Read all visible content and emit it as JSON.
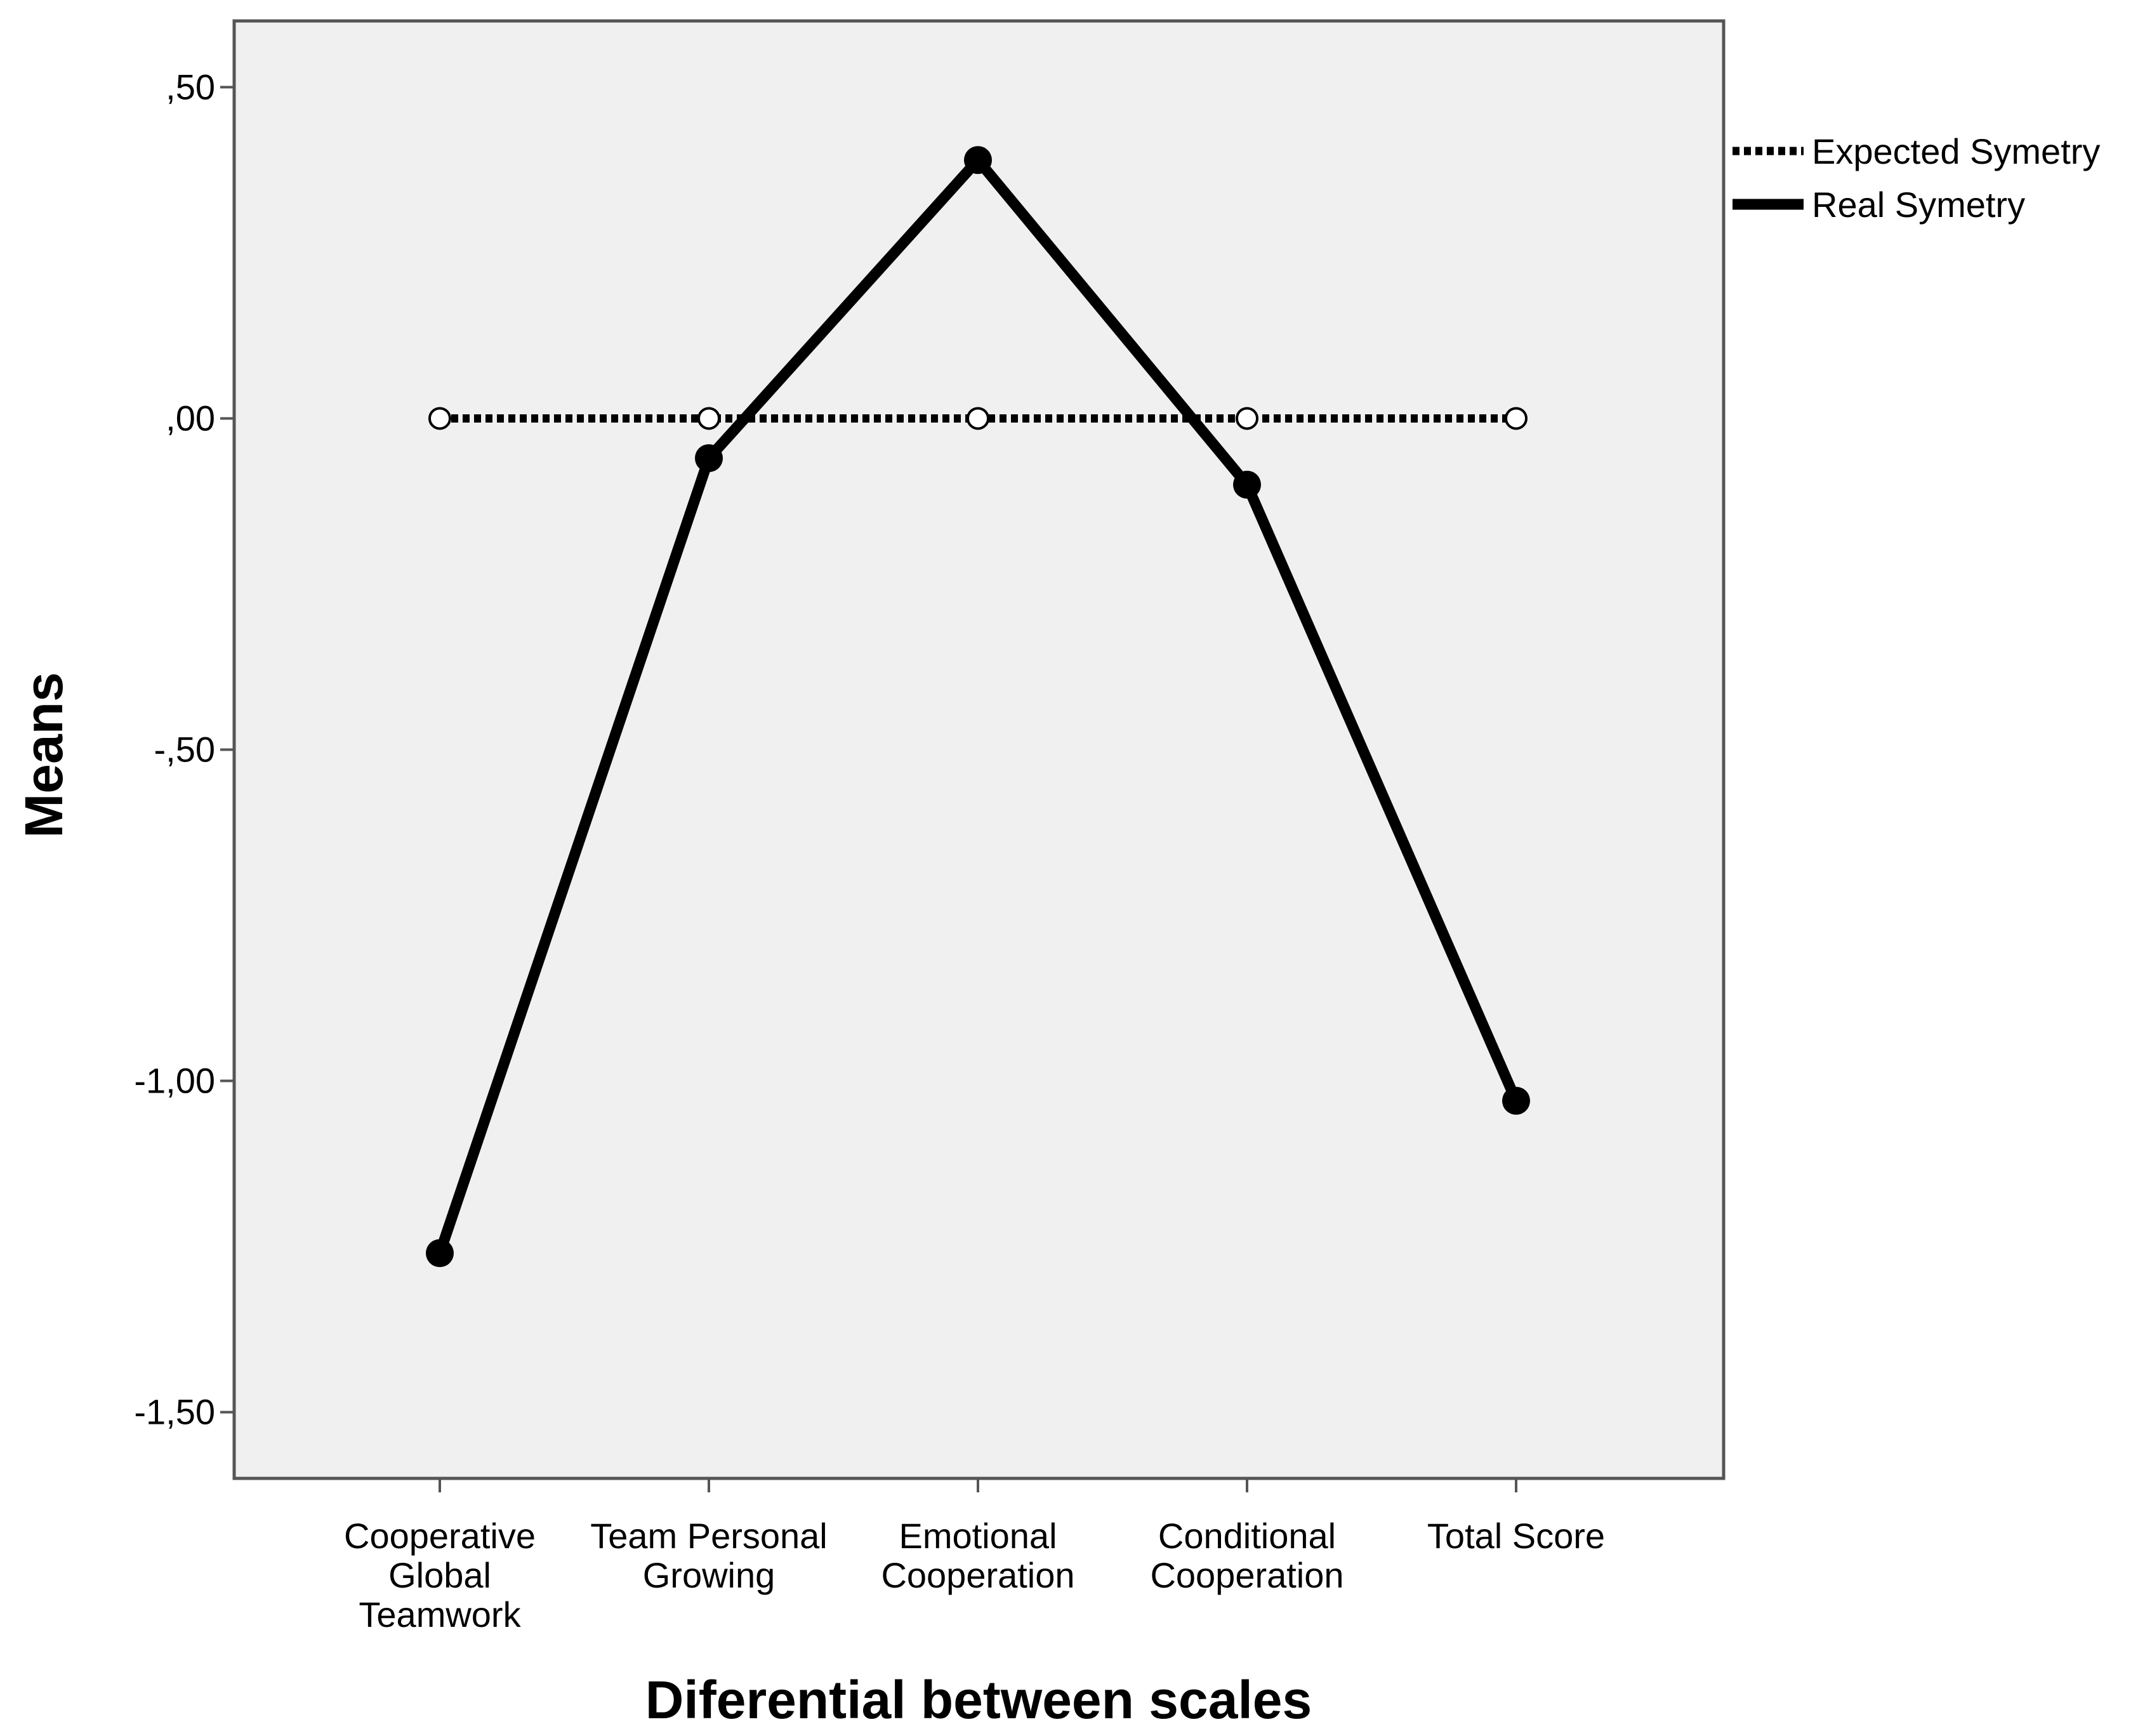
{
  "chart_data": {
    "type": "line",
    "title": "",
    "xlabel": "Diferential between scales",
    "ylabel": "Means",
    "ylim": [
      -1.6,
      0.6
    ],
    "yticks": [
      {
        "value": 0.5,
        "label": ",50"
      },
      {
        "value": 0.0,
        "label": ",00"
      },
      {
        "value": -0.5,
        "label": "-,50"
      },
      {
        "value": -1.0,
        "label": "-1,00"
      },
      {
        "value": -1.5,
        "label": "-1,50"
      }
    ],
    "categories": [
      [
        "Cooperative",
        "Global",
        "Teamwork"
      ],
      [
        "Team Personal",
        "Growing"
      ],
      [
        "Emotional",
        "Cooperation"
      ],
      [
        "Conditional",
        "Cooperation"
      ],
      [
        "Total Score"
      ]
    ],
    "series": [
      {
        "name": "Expected Symetry",
        "style": "dotted",
        "marker": "open-circle",
        "color": "#000000",
        "values": [
          0,
          0,
          0,
          0,
          0
        ]
      },
      {
        "name": "Real Symetry",
        "style": "solid",
        "marker": "filled-circle",
        "color": "#000000",
        "values": [
          -1.26,
          -0.06,
          0.39,
          -0.1,
          -1.03
        ]
      }
    ],
    "grid": false,
    "legend": "top-right",
    "plot_background": "#f0f0f0"
  }
}
